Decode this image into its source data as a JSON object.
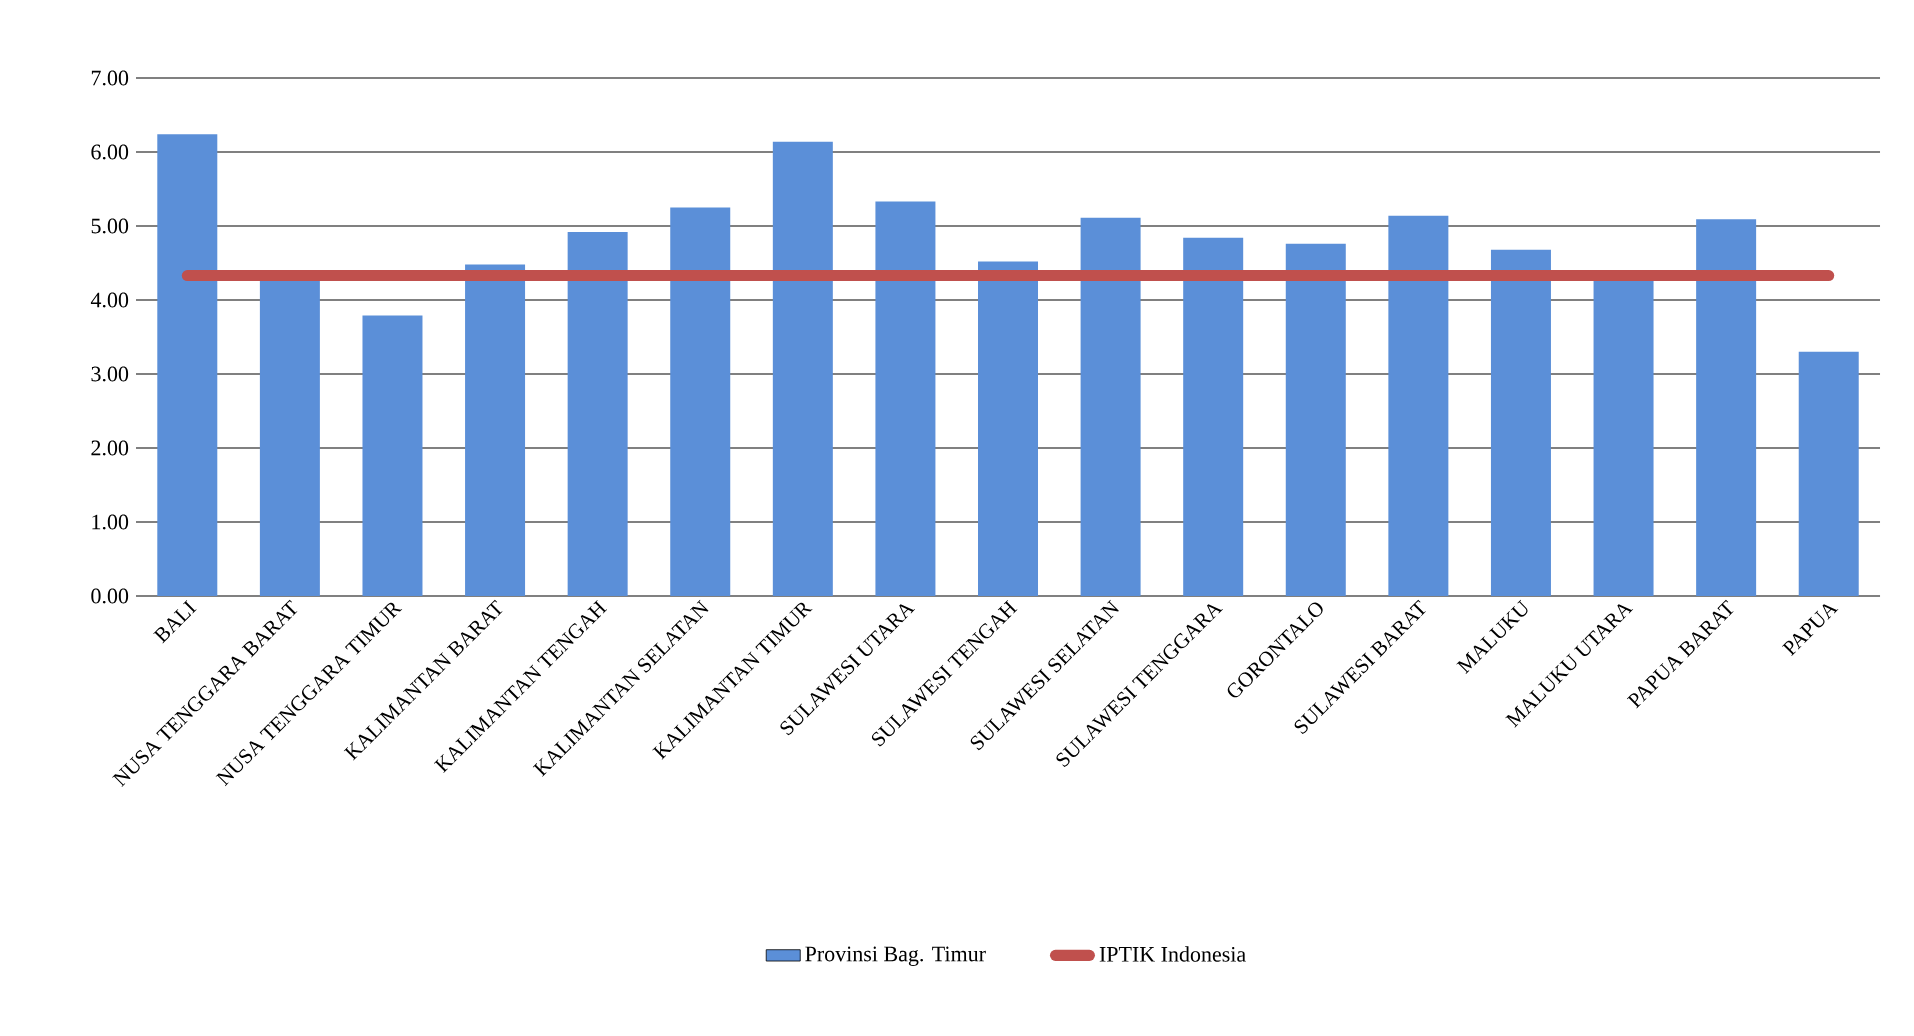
{
  "chart_data": {
    "type": "bar",
    "categories": [
      "BALI",
      "NUSA TENGGARA BARAT",
      "NUSA TENGGARA TIMUR",
      "KALIMANTAN BARAT",
      "KALIMANTAN TENGAH",
      "KALIMANTAN SELATAN",
      "KALIMANTAN TIMUR",
      "SULAWESI UTARA",
      "SULAWESI TENGAH",
      "SULAWESI SELATAN",
      "SULAWESI TENGGARA",
      "GORONTALO",
      "SULAWESI BARAT",
      "MALUKU",
      "MALUKU UTARA",
      "PAPUA BARAT",
      "PAPUA"
    ],
    "series": [
      {
        "name": "Provinsi Bag. Timur",
        "color": "#5b8fd8",
        "values": [
          6.24,
          4.3,
          3.79,
          4.48,
          4.92,
          5.25,
          6.14,
          5.33,
          4.52,
          5.11,
          4.84,
          4.76,
          5.14,
          4.68,
          4.3,
          5.09,
          3.3
        ]
      },
      {
        "name": "IPTIK Indonesia",
        "type": "line",
        "color": "#c0504d",
        "values": [
          4.33,
          4.33,
          4.33,
          4.33,
          4.33,
          4.33,
          4.33,
          4.33,
          4.33,
          4.33,
          4.33,
          4.33,
          4.33,
          4.33,
          4.33,
          4.33,
          4.33
        ]
      }
    ],
    "ylim": [
      0,
      7
    ],
    "yticks": [
      {
        "value": 0,
        "label": "0.00"
      },
      {
        "value": 1,
        "label": "1.00"
      },
      {
        "value": 2,
        "label": "2.00"
      },
      {
        "value": 3,
        "label": "3.00"
      },
      {
        "value": 4,
        "label": "4.00"
      },
      {
        "value": 5,
        "label": "5.00"
      },
      {
        "value": 6,
        "label": "6.00"
      },
      {
        "value": 7,
        "label": "7.00"
      }
    ],
    "grid": "y",
    "legend": "bottom"
  }
}
